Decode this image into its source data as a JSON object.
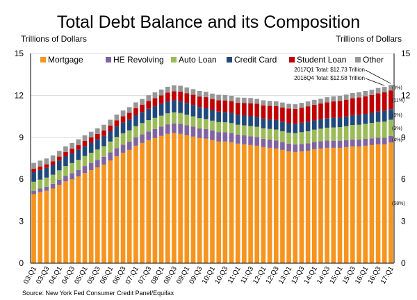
{
  "chart_data": {
    "type": "stacked-bar",
    "title": "Total Debt Balance and its Composition",
    "ylabel_left": "Trillions of Dollars",
    "ylabel_right": "Trillions of Dollars",
    "ylim": [
      0,
      15
    ],
    "yticks": [
      0,
      3,
      6,
      9,
      12,
      15
    ],
    "source": "Source: New York Fed Consumer Credit Panel/Equifax",
    "categories": [
      "03:Q1",
      "03:Q2",
      "03:Q3",
      "03:Q4",
      "04:Q1",
      "04:Q2",
      "04:Q3",
      "04:Q4",
      "05:Q1",
      "05:Q2",
      "05:Q3",
      "05:Q4",
      "06:Q1",
      "06:Q2",
      "06:Q3",
      "06:Q4",
      "07:Q1",
      "07:Q2",
      "07:Q3",
      "07:Q4",
      "08:Q1",
      "08:Q2",
      "08:Q3",
      "08:Q4",
      "09:Q1",
      "09:Q2",
      "09:Q3",
      "09:Q4",
      "10:Q1",
      "10:Q2",
      "10:Q3",
      "10:Q4",
      "11:Q1",
      "11:Q2",
      "11:Q3",
      "11:Q4",
      "12:Q1",
      "12:Q2",
      "12:Q3",
      "12:Q4",
      "13:Q1",
      "13:Q2",
      "13:Q3",
      "13:Q4",
      "14:Q1",
      "14:Q2",
      "14:Q3",
      "14:Q4",
      "15:Q1",
      "15:Q2",
      "15:Q3",
      "15:Q4",
      "16:Q1",
      "16:Q2",
      "16:Q3",
      "16:Q4",
      "17:Q1"
    ],
    "xtick_labels": [
      "03:Q1",
      "03:Q3",
      "04:Q1",
      "04:Q3",
      "05:Q1",
      "05:Q3",
      "06:Q1",
      "06:Q3",
      "07:Q1",
      "07:Q3",
      "08:Q1",
      "08:Q3",
      "09:Q1",
      "09:Q3",
      "10:Q1",
      "10:Q3",
      "11:Q1",
      "11:Q3",
      "12:Q1",
      "12:Q3",
      "13:Q1",
      "13:Q3",
      "14:Q1",
      "14:Q3",
      "15:Q1",
      "15:Q3",
      "16:Q1",
      "16:Q3",
      "17:Q1"
    ],
    "series": [
      {
        "name": "Mortgage",
        "color": "#F7941D",
        "values": [
          4.94,
          5.08,
          5.18,
          5.34,
          5.6,
          5.85,
          6.0,
          6.2,
          6.45,
          6.65,
          6.85,
          7.05,
          7.35,
          7.65,
          7.9,
          8.1,
          8.4,
          8.6,
          8.8,
          8.95,
          9.1,
          9.25,
          9.3,
          9.25,
          9.15,
          9.05,
          8.95,
          8.9,
          8.8,
          8.7,
          8.7,
          8.65,
          8.55,
          8.5,
          8.45,
          8.4,
          8.3,
          8.25,
          8.2,
          8.1,
          8.0,
          7.95,
          8.0,
          8.05,
          8.15,
          8.2,
          8.25,
          8.25,
          8.25,
          8.3,
          8.35,
          8.35,
          8.4,
          8.45,
          8.5,
          8.5,
          8.63
        ]
      },
      {
        "name": "HE Revolving",
        "color": "#8064A2",
        "values": [
          0.24,
          0.26,
          0.29,
          0.33,
          0.36,
          0.4,
          0.44,
          0.47,
          0.5,
          0.52,
          0.54,
          0.56,
          0.57,
          0.58,
          0.58,
          0.59,
          0.6,
          0.61,
          0.62,
          0.64,
          0.66,
          0.68,
          0.7,
          0.71,
          0.71,
          0.71,
          0.7,
          0.7,
          0.69,
          0.68,
          0.67,
          0.66,
          0.64,
          0.64,
          0.63,
          0.62,
          0.6,
          0.59,
          0.58,
          0.56,
          0.55,
          0.54,
          0.53,
          0.53,
          0.52,
          0.52,
          0.52,
          0.51,
          0.51,
          0.5,
          0.5,
          0.49,
          0.49,
          0.48,
          0.48,
          0.47,
          0.46
        ]
      },
      {
        "name": "Auto Loan",
        "color": "#9BBB59",
        "values": [
          0.64,
          0.64,
          0.65,
          0.66,
          0.68,
          0.7,
          0.72,
          0.72,
          0.72,
          0.73,
          0.74,
          0.76,
          0.78,
          0.8,
          0.81,
          0.81,
          0.8,
          0.81,
          0.81,
          0.8,
          0.79,
          0.79,
          0.79,
          0.78,
          0.76,
          0.74,
          0.72,
          0.71,
          0.7,
          0.71,
          0.71,
          0.71,
          0.71,
          0.72,
          0.73,
          0.74,
          0.75,
          0.76,
          0.78,
          0.78,
          0.79,
          0.81,
          0.84,
          0.86,
          0.88,
          0.9,
          0.92,
          0.95,
          0.97,
          1.0,
          1.03,
          1.06,
          1.08,
          1.1,
          1.13,
          1.16,
          1.17
        ]
      },
      {
        "name": "Credit Card",
        "color": "#1F497D",
        "values": [
          0.69,
          0.69,
          0.7,
          0.7,
          0.7,
          0.7,
          0.71,
          0.72,
          0.71,
          0.72,
          0.73,
          0.73,
          0.74,
          0.75,
          0.76,
          0.77,
          0.78,
          0.79,
          0.81,
          0.83,
          0.84,
          0.85,
          0.86,
          0.85,
          0.84,
          0.82,
          0.8,
          0.79,
          0.76,
          0.75,
          0.74,
          0.73,
          0.72,
          0.72,
          0.72,
          0.71,
          0.69,
          0.69,
          0.68,
          0.68,
          0.67,
          0.67,
          0.67,
          0.68,
          0.66,
          0.67,
          0.68,
          0.7,
          0.68,
          0.69,
          0.71,
          0.72,
          0.71,
          0.72,
          0.75,
          0.78,
          0.76
        ]
      },
      {
        "name": "Student Loan",
        "color": "#C00000",
        "values": [
          0.24,
          0.25,
          0.25,
          0.26,
          0.28,
          0.3,
          0.32,
          0.33,
          0.36,
          0.37,
          0.38,
          0.39,
          0.41,
          0.44,
          0.46,
          0.48,
          0.51,
          0.53,
          0.56,
          0.58,
          0.61,
          0.63,
          0.65,
          0.68,
          0.7,
          0.73,
          0.75,
          0.77,
          0.79,
          0.81,
          0.82,
          0.84,
          0.86,
          0.88,
          0.91,
          0.93,
          0.95,
          0.97,
          0.99,
          1.02,
          1.05,
          1.06,
          1.08,
          1.1,
          1.12,
          1.13,
          1.14,
          1.16,
          1.19,
          1.2,
          1.21,
          1.23,
          1.26,
          1.27,
          1.29,
          1.31,
          1.34
        ]
      },
      {
        "name": "Other",
        "color": "#969696",
        "values": [
          0.42,
          0.42,
          0.42,
          0.42,
          0.41,
          0.41,
          0.41,
          0.42,
          0.41,
          0.41,
          0.41,
          0.41,
          0.41,
          0.41,
          0.41,
          0.41,
          0.41,
          0.41,
          0.41,
          0.42,
          0.42,
          0.42,
          0.42,
          0.42,
          0.41,
          0.4,
          0.4,
          0.39,
          0.39,
          0.39,
          0.39,
          0.38,
          0.37,
          0.37,
          0.37,
          0.36,
          0.36,
          0.35,
          0.35,
          0.35,
          0.34,
          0.34,
          0.35,
          0.35,
          0.35,
          0.35,
          0.36,
          0.37,
          0.37,
          0.37,
          0.37,
          0.38,
          0.38,
          0.38,
          0.38,
          0.39,
          0.39
        ]
      }
    ],
    "legend_placement": "top",
    "annotations": {
      "totals": [
        "2017Q1 Total: $12.73 Trillion",
        "2016Q4 Total: $12.58 Trillion"
      ],
      "shares": [
        {
          "series": "Other",
          "label": "(3%)"
        },
        {
          "series": "Student Loan",
          "label": "(11%)"
        },
        {
          "series": "Credit Card",
          "label": "(6%)"
        },
        {
          "series": "Auto Loan",
          "label": "(9%)"
        },
        {
          "series": "HE Revolving",
          "label": "(4%)"
        },
        {
          "series": "Mortgage",
          "label": "(68%)"
        }
      ]
    }
  }
}
